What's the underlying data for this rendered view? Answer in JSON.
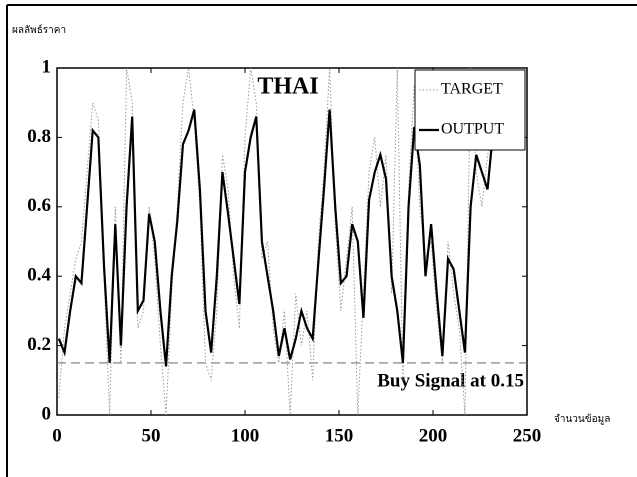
{
  "chart_data": {
    "type": "line",
    "title": "THAI",
    "y_label": "ผลลัพธ์ราคา",
    "x_label": "จำนวนข้อมูล",
    "annotation": "Buy Signal at 0.15",
    "threshold": 0.15,
    "legend": "upper right",
    "xlim": [
      0,
      250
    ],
    "xticks": [
      0,
      50,
      100,
      150,
      200,
      250
    ],
    "ylim": [
      0,
      1
    ],
    "yticks": [
      0,
      0.2,
      0.4,
      0.6,
      0.8,
      1
    ],
    "x": [
      1,
      4,
      7,
      10,
      13,
      16,
      19,
      22,
      25,
      28,
      31,
      34,
      37,
      40,
      43,
      46,
      49,
      52,
      55,
      58,
      61,
      64,
      67,
      70,
      73,
      76,
      79,
      82,
      85,
      88,
      91,
      94,
      97,
      100,
      103,
      106,
      109,
      112,
      115,
      118,
      121,
      124,
      127,
      130,
      133,
      136,
      139,
      142,
      145,
      148,
      151,
      154,
      157,
      160,
      163,
      166,
      169,
      172,
      175,
      178,
      181,
      184,
      187,
      190,
      193,
      196,
      199,
      202,
      205,
      208,
      211,
      214,
      217,
      220,
      223,
      226,
      229,
      232
    ],
    "series": [
      {
        "name": "TARGET",
        "color": "#999999",
        "dash": "dotted",
        "values": [
          0.05,
          0.25,
          0.35,
          0.45,
          0.5,
          0.7,
          0.9,
          0.85,
          0.4,
          0.0,
          0.6,
          0.15,
          1.0,
          0.9,
          0.25,
          0.3,
          0.6,
          0.45,
          0.2,
          0.0,
          0.35,
          0.6,
          0.9,
          1.0,
          0.85,
          0.6,
          0.15,
          0.1,
          0.3,
          0.75,
          0.65,
          0.4,
          0.25,
          0.8,
          1.0,
          0.9,
          0.45,
          0.5,
          0.25,
          0.15,
          0.3,
          0.0,
          0.35,
          0.2,
          0.3,
          0.1,
          0.5,
          0.7,
          1.0,
          0.55,
          0.3,
          0.45,
          0.6,
          0.0,
          0.35,
          0.7,
          0.8,
          0.6,
          0.75,
          0.35,
          1.0,
          0.1,
          0.65,
          0.95,
          0.6,
          0.45,
          0.5,
          0.3,
          0.15,
          0.5,
          0.35,
          0.25,
          0.0,
          1.0,
          0.7,
          0.6,
          0.75,
          0.8
        ]
      },
      {
        "name": "OUTPUT",
        "color": "#000000",
        "dash": "solid",
        "values": [
          0.22,
          0.18,
          0.3,
          0.4,
          0.38,
          0.6,
          0.82,
          0.8,
          0.43,
          0.15,
          0.55,
          0.2,
          0.6,
          0.86,
          0.3,
          0.33,
          0.58,
          0.5,
          0.3,
          0.14,
          0.4,
          0.56,
          0.78,
          0.82,
          0.88,
          0.65,
          0.3,
          0.18,
          0.4,
          0.7,
          0.58,
          0.45,
          0.32,
          0.7,
          0.8,
          0.86,
          0.5,
          0.4,
          0.3,
          0.17,
          0.25,
          0.16,
          0.22,
          0.3,
          0.25,
          0.22,
          0.44,
          0.65,
          0.88,
          0.6,
          0.38,
          0.4,
          0.55,
          0.5,
          0.28,
          0.62,
          0.7,
          0.75,
          0.68,
          0.4,
          0.3,
          0.15,
          0.6,
          0.83,
          0.72,
          0.4,
          0.55,
          0.35,
          0.17,
          0.45,
          0.42,
          0.3,
          0.18,
          0.6,
          0.75,
          0.7,
          0.65,
          0.82
        ]
      }
    ]
  }
}
